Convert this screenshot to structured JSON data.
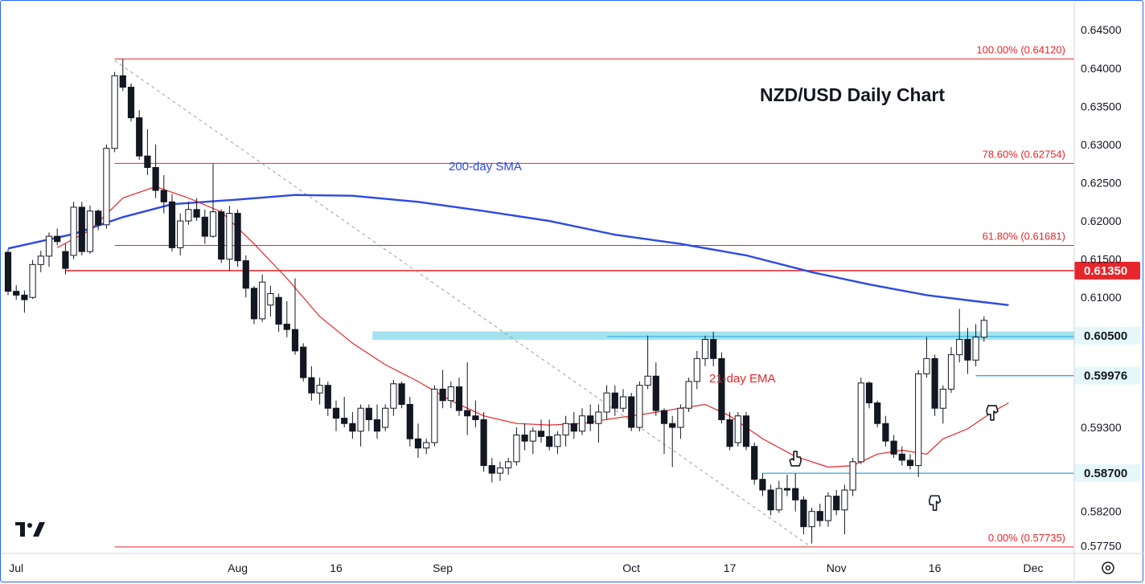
{
  "colors": {
    "fib_line": "#e8252a",
    "sma": "#2a49e6",
    "ema": "#e8252a",
    "support_line": "#29a9e3",
    "zone": "#8cdce8",
    "candle_border": "#131722",
    "tag_red": "#e8252a",
    "tag_blue_bg": "#e6f7fb",
    "axis_text": "#131722",
    "trend": "#9e9e9e"
  },
  "icons": {
    "logo": "tradingview-logo-icon",
    "settings": "settings-icon",
    "hand": "pointing-hand-icon"
  },
  "chart_data": {
    "type": "candlestick",
    "title": "NZD/USD Daily Chart",
    "ylim": [
      0.5765,
      0.6487
    ],
    "yticks": [
      "0.64500",
      "0.64000",
      "0.63500",
      "0.63000",
      "0.62500",
      "0.62000",
      "0.61500",
      "0.61000",
      "0.59300",
      "0.58200",
      "0.57750"
    ],
    "xticks": [
      {
        "label": "Jul",
        "i": 1
      },
      {
        "label": "Aug",
        "i": 28
      },
      {
        "label": "16",
        "i": 40
      },
      {
        "label": "Sep",
        "i": 53
      },
      {
        "label": "Oct",
        "i": 76
      },
      {
        "label": "17",
        "i": 88
      },
      {
        "label": "Nov",
        "i": 101
      },
      {
        "label": "16",
        "i": 113
      },
      {
        "label": "Dec",
        "i": 125
      }
    ],
    "candles": [
      [
        0.6159,
        0.6163,
        0.6103,
        0.6108
      ],
      [
        0.6108,
        0.6116,
        0.6097,
        0.6103
      ],
      [
        0.6103,
        0.6109,
        0.608,
        0.6097
      ],
      [
        0.61,
        0.6149,
        0.6098,
        0.6143
      ],
      [
        0.6143,
        0.6161,
        0.6133,
        0.6154
      ],
      [
        0.6154,
        0.6185,
        0.614,
        0.618
      ],
      [
        0.618,
        0.619,
        0.6168,
        0.6173
      ],
      [
        0.616,
        0.617,
        0.613,
        0.6138
      ],
      [
        0.6155,
        0.6225,
        0.615,
        0.6218
      ],
      [
        0.6218,
        0.6225,
        0.6155,
        0.616
      ],
      [
        0.616,
        0.622,
        0.6157,
        0.6213
      ],
      [
        0.6213,
        0.6215,
        0.6188,
        0.6195
      ],
      [
        0.6195,
        0.63,
        0.619,
        0.6295
      ],
      [
        0.6295,
        0.6395,
        0.629,
        0.639
      ],
      [
        0.639,
        0.6412,
        0.637,
        0.6375
      ],
      [
        0.6375,
        0.638,
        0.633,
        0.6335
      ],
      [
        0.6335,
        0.6345,
        0.628,
        0.6285
      ],
      [
        0.6285,
        0.632,
        0.626,
        0.627
      ],
      [
        0.627,
        0.63,
        0.623,
        0.624
      ],
      [
        0.624,
        0.626,
        0.621,
        0.6225
      ],
      [
        0.6225,
        0.6235,
        0.616,
        0.6165
      ],
      [
        0.6165,
        0.621,
        0.6155,
        0.62
      ],
      [
        0.62,
        0.6225,
        0.6195,
        0.6215
      ],
      [
        0.6215,
        0.623,
        0.62,
        0.6205
      ],
      [
        0.6205,
        0.6215,
        0.617,
        0.618
      ],
      [
        0.618,
        0.6275,
        0.6178,
        0.6212
      ],
      [
        0.6212,
        0.6215,
        0.6145,
        0.615
      ],
      [
        0.615,
        0.622,
        0.6135,
        0.621
      ],
      [
        0.621,
        0.6215,
        0.614,
        0.6148
      ],
      [
        0.6148,
        0.6155,
        0.61,
        0.6112
      ],
      [
        0.6112,
        0.6115,
        0.6065,
        0.6072
      ],
      [
        0.6072,
        0.613,
        0.6068,
        0.612
      ],
      [
        0.609,
        0.6115,
        0.6075,
        0.6105
      ],
      [
        0.61,
        0.6105,
        0.6055,
        0.6065
      ],
      [
        0.6065,
        0.6095,
        0.6048,
        0.6058
      ],
      [
        0.6058,
        0.6125,
        0.6025,
        0.603
      ],
      [
        0.6035,
        0.604,
        0.599,
        0.5995
      ],
      [
        0.5995,
        0.601,
        0.5965,
        0.5975
      ],
      [
        0.5975,
        0.5995,
        0.596,
        0.5985
      ],
      [
        0.5985,
        0.599,
        0.5945,
        0.5955
      ],
      [
        0.5955,
        0.5965,
        0.5925,
        0.5942
      ],
      [
        0.5942,
        0.597,
        0.593,
        0.5935
      ],
      [
        0.5935,
        0.595,
        0.5915,
        0.5925
      ],
      [
        0.5925,
        0.596,
        0.5905,
        0.5955
      ],
      [
        0.5955,
        0.596,
        0.5925,
        0.594
      ],
      [
        0.594,
        0.596,
        0.5915,
        0.5925
      ],
      [
        0.593,
        0.596,
        0.5925,
        0.5955
      ],
      [
        0.5955,
        0.5992,
        0.5945,
        0.5987
      ],
      [
        0.5987,
        0.599,
        0.5955,
        0.596
      ],
      [
        0.596,
        0.597,
        0.5905,
        0.5915
      ],
      [
        0.5915,
        0.5935,
        0.589,
        0.5903
      ],
      [
        0.5903,
        0.5915,
        0.5895,
        0.591
      ],
      [
        0.591,
        0.5985,
        0.5905,
        0.598
      ],
      [
        0.598,
        0.6005,
        0.5955,
        0.5965
      ],
      [
        0.5965,
        0.599,
        0.5955,
        0.5983
      ],
      [
        0.5983,
        0.5995,
        0.5945,
        0.5952
      ],
      [
        0.5952,
        0.6015,
        0.592,
        0.5945
      ],
      [
        0.5945,
        0.5965,
        0.593,
        0.594
      ],
      [
        0.594,
        0.595,
        0.5872,
        0.588
      ],
      [
        0.588,
        0.589,
        0.5858,
        0.587
      ],
      [
        0.587,
        0.5885,
        0.586,
        0.5877
      ],
      [
        0.5877,
        0.589,
        0.5868,
        0.5885
      ],
      [
        0.5885,
        0.593,
        0.588,
        0.592
      ],
      [
        0.592,
        0.5935,
        0.59,
        0.5912
      ],
      [
        0.5912,
        0.593,
        0.5895,
        0.5925
      ],
      [
        0.5925,
        0.594,
        0.591,
        0.5918
      ],
      [
        0.5918,
        0.594,
        0.59,
        0.5905
      ],
      [
        0.5905,
        0.5925,
        0.5895,
        0.592
      ],
      [
        0.592,
        0.5945,
        0.5905,
        0.5935
      ],
      [
        0.5935,
        0.595,
        0.5915,
        0.5925
      ],
      [
        0.5925,
        0.5955,
        0.592,
        0.5945
      ],
      [
        0.5945,
        0.596,
        0.5925,
        0.5935
      ],
      [
        0.5935,
        0.596,
        0.591,
        0.595
      ],
      [
        0.595,
        0.5985,
        0.594,
        0.5975
      ],
      [
        0.5975,
        0.5985,
        0.5945,
        0.5955
      ],
      [
        0.5955,
        0.598,
        0.595,
        0.597
      ],
      [
        0.597,
        0.5975,
        0.5925,
        0.593
      ],
      [
        0.593,
        0.599,
        0.5925,
        0.5985
      ],
      [
        0.5985,
        0.605,
        0.598,
        0.5997
      ],
      [
        0.5997,
        0.6015,
        0.5945,
        0.5952
      ],
      [
        0.5952,
        0.5955,
        0.5895,
        0.5935
      ],
      [
        0.5935,
        0.5945,
        0.5878,
        0.593
      ],
      [
        0.593,
        0.596,
        0.5915,
        0.5955
      ],
      [
        0.5955,
        0.5995,
        0.595,
        0.599
      ],
      [
        0.599,
        0.603,
        0.598,
        0.602
      ],
      [
        0.602,
        0.605,
        0.601,
        0.6045
      ],
      [
        0.6045,
        0.6055,
        0.601,
        0.602
      ],
      [
        0.602,
        0.6028,
        0.5935,
        0.594
      ],
      [
        0.594,
        0.595,
        0.59,
        0.5905
      ],
      [
        0.591,
        0.595,
        0.5905,
        0.5945
      ],
      [
        0.5945,
        0.595,
        0.59,
        0.5905
      ],
      [
        0.5905,
        0.591,
        0.5855,
        0.5862
      ],
      [
        0.5862,
        0.587,
        0.584,
        0.5848
      ],
      [
        0.5848,
        0.5855,
        0.5815,
        0.5822
      ],
      [
        0.5822,
        0.586,
        0.5818,
        0.585
      ],
      [
        0.585,
        0.5868,
        0.584,
        0.5848
      ],
      [
        0.585,
        0.587,
        0.582,
        0.5835
      ],
      [
        0.5835,
        0.584,
        0.579,
        0.58
      ],
      [
        0.58,
        0.5825,
        0.5778,
        0.582
      ],
      [
        0.582,
        0.583,
        0.58,
        0.5808
      ],
      [
        0.5808,
        0.5845,
        0.58,
        0.584
      ],
      [
        0.584,
        0.5848,
        0.5815,
        0.5822
      ],
      [
        0.5822,
        0.5855,
        0.579,
        0.5848
      ],
      [
        0.5848,
        0.589,
        0.584,
        0.5885
      ],
      [
        0.5885,
        0.5995,
        0.5882,
        0.5988
      ],
      [
        0.5988,
        0.599,
        0.5955,
        0.5962
      ],
      [
        0.5962,
        0.5965,
        0.593,
        0.5935
      ],
      [
        0.5935,
        0.5945,
        0.5905,
        0.5912
      ],
      [
        0.5912,
        0.592,
        0.589,
        0.5895
      ],
      [
        0.5895,
        0.5905,
        0.588,
        0.5887
      ],
      [
        0.5887,
        0.5895,
        0.5875,
        0.588
      ],
      [
        0.588,
        0.6005,
        0.5865,
        0.6
      ],
      [
        0.6,
        0.6048,
        0.5995,
        0.602
      ],
      [
        0.602,
        0.6025,
        0.5945,
        0.5955
      ],
      [
        0.5955,
        0.5985,
        0.5935,
        0.598
      ],
      [
        0.598,
        0.6035,
        0.5975,
        0.6025
      ],
      [
        0.6025,
        0.6085,
        0.6015,
        0.6045
      ],
      [
        0.6045,
        0.606,
        0.6,
        0.6018
      ],
      [
        0.6018,
        0.6065,
        0.601,
        0.6048
      ],
      [
        0.6048,
        0.6075,
        0.6042,
        0.607
      ]
    ],
    "sma_200": [
      [
        0,
        0.6164
      ],
      [
        8,
        0.6183
      ],
      [
        14,
        0.6205
      ],
      [
        20,
        0.6222
      ],
      [
        28,
        0.6228
      ],
      [
        35,
        0.6234
      ],
      [
        42,
        0.6233
      ],
      [
        50,
        0.6225
      ],
      [
        58,
        0.6213
      ],
      [
        66,
        0.62
      ],
      [
        74,
        0.6182
      ],
      [
        82,
        0.617
      ],
      [
        90,
        0.6155
      ],
      [
        98,
        0.6133
      ],
      [
        105,
        0.6117
      ],
      [
        112,
        0.6103
      ],
      [
        118,
        0.6095
      ],
      [
        122,
        0.609
      ]
    ],
    "ema_21": [
      [
        6,
        0.6165
      ],
      [
        10,
        0.6188
      ],
      [
        14,
        0.623
      ],
      [
        18,
        0.6245
      ],
      [
        22,
        0.623
      ],
      [
        26,
        0.6212
      ],
      [
        30,
        0.617
      ],
      [
        34,
        0.6125
      ],
      [
        38,
        0.6075
      ],
      [
        42,
        0.604
      ],
      [
        46,
        0.6012
      ],
      [
        50,
        0.599
      ],
      [
        54,
        0.5965
      ],
      [
        58,
        0.5945
      ],
      [
        62,
        0.5935
      ],
      [
        66,
        0.5933
      ],
      [
        70,
        0.5935
      ],
      [
        74,
        0.5942
      ],
      [
        78,
        0.5948
      ],
      [
        82,
        0.5955
      ],
      [
        85,
        0.596
      ],
      [
        88,
        0.5945
      ],
      [
        92,
        0.5915
      ],
      [
        96,
        0.5892
      ],
      [
        100,
        0.5878
      ],
      [
        103,
        0.588
      ],
      [
        106,
        0.5895
      ],
      [
        109,
        0.59
      ],
      [
        112,
        0.5895
      ],
      [
        114,
        0.5915
      ],
      [
        117,
        0.5928
      ],
      [
        120,
        0.595
      ],
      [
        122,
        0.5962
      ]
    ],
    "sma_label": "200-day SMA",
    "ema_label": "21-day EMA",
    "fib_levels": [
      {
        "label": "100.00% (0.64120)",
        "value": 0.6412
      },
      {
        "label": "78.60% (0.62754)",
        "value": 0.62754
      },
      {
        "label": "61.80% (0.61681)",
        "value": 0.61681
      },
      {
        "label": "0.00% (0.57735)",
        "value": 0.57735
      }
    ],
    "resistance": {
      "value": 0.6135,
      "label": "0.61350"
    },
    "zone": {
      "value": 0.605,
      "half_width": 0.00055,
      "label": "0.60500",
      "from_i": 46
    },
    "supports": [
      {
        "value": 0.59976,
        "label": "0.59976",
        "from_i": 118
      },
      {
        "value": 0.587,
        "label": "0.58700",
        "from_i": 92
      }
    ],
    "trend_line": {
      "from": [
        13,
        0.641
      ],
      "to": [
        98,
        0.5773
      ]
    },
    "hand_markers": [
      {
        "i": 96,
        "value": 0.5888,
        "dir": "up"
      },
      {
        "i": 113,
        "value": 0.5832,
        "dir": "down"
      },
      {
        "i": 120,
        "value": 0.595,
        "dir": "down"
      }
    ]
  }
}
